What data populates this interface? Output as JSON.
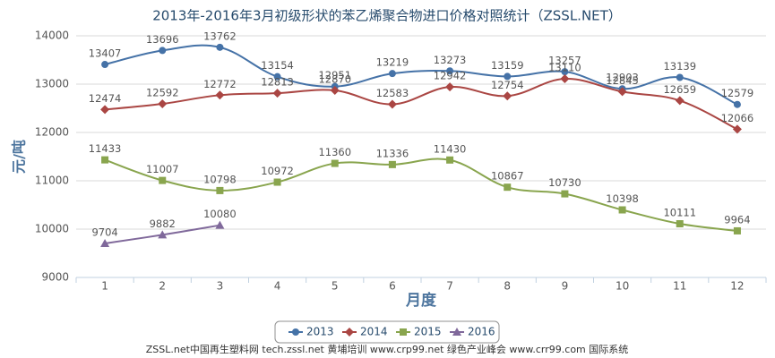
{
  "chart_data": {
    "type": "line",
    "title": "2013年-2016年3月初级形状的苯乙烯聚合物进口价格对照统计（ZSSL.NET）",
    "y_label": "元/吨",
    "x_label": "月度",
    "categories": [
      "1",
      "2",
      "3",
      "4",
      "5",
      "6",
      "7",
      "8",
      "9",
      "10",
      "11",
      "12"
    ],
    "series": [
      {
        "name": "2013",
        "color": "#4572a7",
        "marker": "circle",
        "values": [
          13407,
          13696,
          13762,
          13154,
          12951,
          13219,
          13273,
          13159,
          13257,
          12903,
          13139,
          12579
        ]
      },
      {
        "name": "2014",
        "color": "#aa4643",
        "marker": "diamond",
        "values": [
          12474,
          12592,
          12772,
          12813,
          12870,
          12583,
          12942,
          12754,
          13110,
          12845,
          12659,
          12066
        ]
      },
      {
        "name": "2015",
        "color": "#89a54e",
        "marker": "square",
        "values": [
          11433,
          11007,
          10798,
          10972,
          11360,
          11336,
          11430,
          10867,
          10730,
          10398,
          10111,
          9964
        ]
      },
      {
        "name": "2016",
        "color": "#80699b",
        "marker": "triangle",
        "values": [
          9704,
          9882,
          10080,
          null,
          null,
          null,
          null,
          null,
          null,
          null,
          null,
          null
        ]
      }
    ],
    "ylim": [
      9000,
      14000
    ],
    "yticks": [
      9000,
      10000,
      11000,
      12000,
      13000,
      14000
    ],
    "grid": true,
    "legend": "bottom",
    "footer": "ZSSL.net中国再生塑料网 tech.zssl.net 黄埔培训 www.crp99.net 绿色产业峰会 www.crr99.com 国际系统"
  }
}
